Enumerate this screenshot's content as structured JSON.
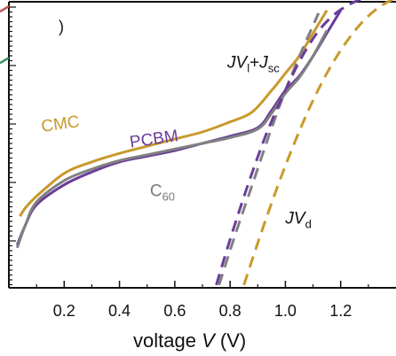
{
  "chart_data": {
    "type": "line",
    "title": "",
    "xlabel": "voltage V (V)",
    "xlabel_parts": {
      "prefix": "voltage ",
      "variable": "V",
      "suffix": " (V)"
    },
    "ylabel": "",
    "xlim": [
      0.0,
      1.4
    ],
    "ylim": [
      0,
      10
    ],
    "x_ticks": [
      "0.2",
      "0.4",
      "0.6",
      "0.8",
      "1.0",
      "1.2"
    ],
    "x_tick_values": [
      0.2,
      0.4,
      0.6,
      0.8,
      1.0,
      1.2
    ],
    "grid": false,
    "legend": "none",
    "series": [
      {
        "id": "cmc-light",
        "color": "#c89a2c",
        "dash": "solid",
        "x": [
          0.04,
          0.06,
          0.1,
          0.2,
          0.3,
          0.4,
          0.5,
          0.6,
          0.7,
          0.8,
          0.88,
          0.95,
          1.0,
          1.05,
          1.1,
          1.15
        ],
        "y": [
          2.5,
          2.8,
          3.2,
          4.0,
          4.4,
          4.7,
          4.95,
          5.2,
          5.45,
          5.8,
          6.15,
          6.9,
          7.5,
          8.1,
          8.9,
          9.7
        ]
      },
      {
        "id": "pcbm-light",
        "color": "#6a3d9a",
        "dash": "solid",
        "x": [
          0.03,
          0.06,
          0.1,
          0.2,
          0.3,
          0.4,
          0.5,
          0.6,
          0.7,
          0.8,
          0.9,
          0.95,
          1.0,
          1.05,
          1.1,
          1.15,
          1.2
        ],
        "y": [
          1.5,
          2.2,
          2.9,
          3.6,
          4.05,
          4.4,
          4.6,
          4.8,
          5.05,
          5.3,
          5.6,
          6.2,
          6.9,
          7.4,
          8.1,
          8.9,
          9.7
        ]
      },
      {
        "id": "c60-light",
        "color": "#808080",
        "dash": "solid",
        "x": [
          0.03,
          0.06,
          0.1,
          0.2,
          0.3,
          0.4,
          0.5,
          0.6,
          0.7,
          0.8,
          0.9,
          0.95,
          1.0,
          1.05,
          1.1,
          1.15
        ],
        "y": [
          1.4,
          2.2,
          3.0,
          3.75,
          4.15,
          4.45,
          4.65,
          4.85,
          5.05,
          5.25,
          5.55,
          6.1,
          6.8,
          7.35,
          8.1,
          9.0
        ]
      },
      {
        "id": "c60-dark",
        "color": "#808080",
        "dash": "dashed",
        "x": [
          0.76,
          0.82,
          0.88,
          0.94,
          1.0,
          1.06,
          1.12
        ],
        "y": [
          0.1,
          1.9,
          3.6,
          5.3,
          6.9,
          8.3,
          9.6
        ]
      },
      {
        "id": "pcbm-dark",
        "color": "#6a3d9a",
        "dash": "dashed",
        "x": [
          0.75,
          0.81,
          0.87,
          0.93,
          0.99,
          1.05,
          1.11,
          1.17,
          1.23,
          1.29,
          1.34
        ],
        "y": [
          0.1,
          2.0,
          3.75,
          5.35,
          6.7,
          7.9,
          8.85,
          9.5,
          9.9,
          10.15,
          10.35
        ]
      },
      {
        "id": "cmc-dark",
        "color": "#c89a2c",
        "dash": "dashed",
        "x": [
          0.85,
          0.91,
          0.97,
          1.03,
          1.09,
          1.15,
          1.21,
          1.27,
          1.33,
          1.39
        ],
        "y": [
          0.1,
          1.85,
          3.5,
          5.0,
          6.35,
          7.5,
          8.45,
          9.2,
          9.75,
          10.1
        ]
      }
    ],
    "annotations": [
      {
        "id": "cmc",
        "text": "CMC",
        "color": "#c89a2c",
        "x": 0.12,
        "y": 5.45
      },
      {
        "id": "pcbm",
        "text": "PCBM",
        "color": "#6a3d9a",
        "x": 0.44,
        "y": 4.9
      },
      {
        "id": "c60",
        "text": "C",
        "sub": "60",
        "color": "#7a7a7a",
        "x": 0.51,
        "y": 3.2
      },
      {
        "id": "jvl",
        "text": "JV",
        "sub": "l",
        "tail": "+J",
        "tail_sub": "sc",
        "color": "#111111",
        "x": 0.79,
        "y": 7.7
      },
      {
        "id": "jvd",
        "text": "JV",
        "sub": "d",
        "color": "#111111",
        "x": 1.0,
        "y": 2.25
      }
    ],
    "top_left_fragment": ")",
    "left_edge_marks": [
      {
        "color": "#c0504d",
        "y": 9.75
      },
      {
        "color": "#3a8f5e",
        "y": 7.95
      }
    ]
  }
}
